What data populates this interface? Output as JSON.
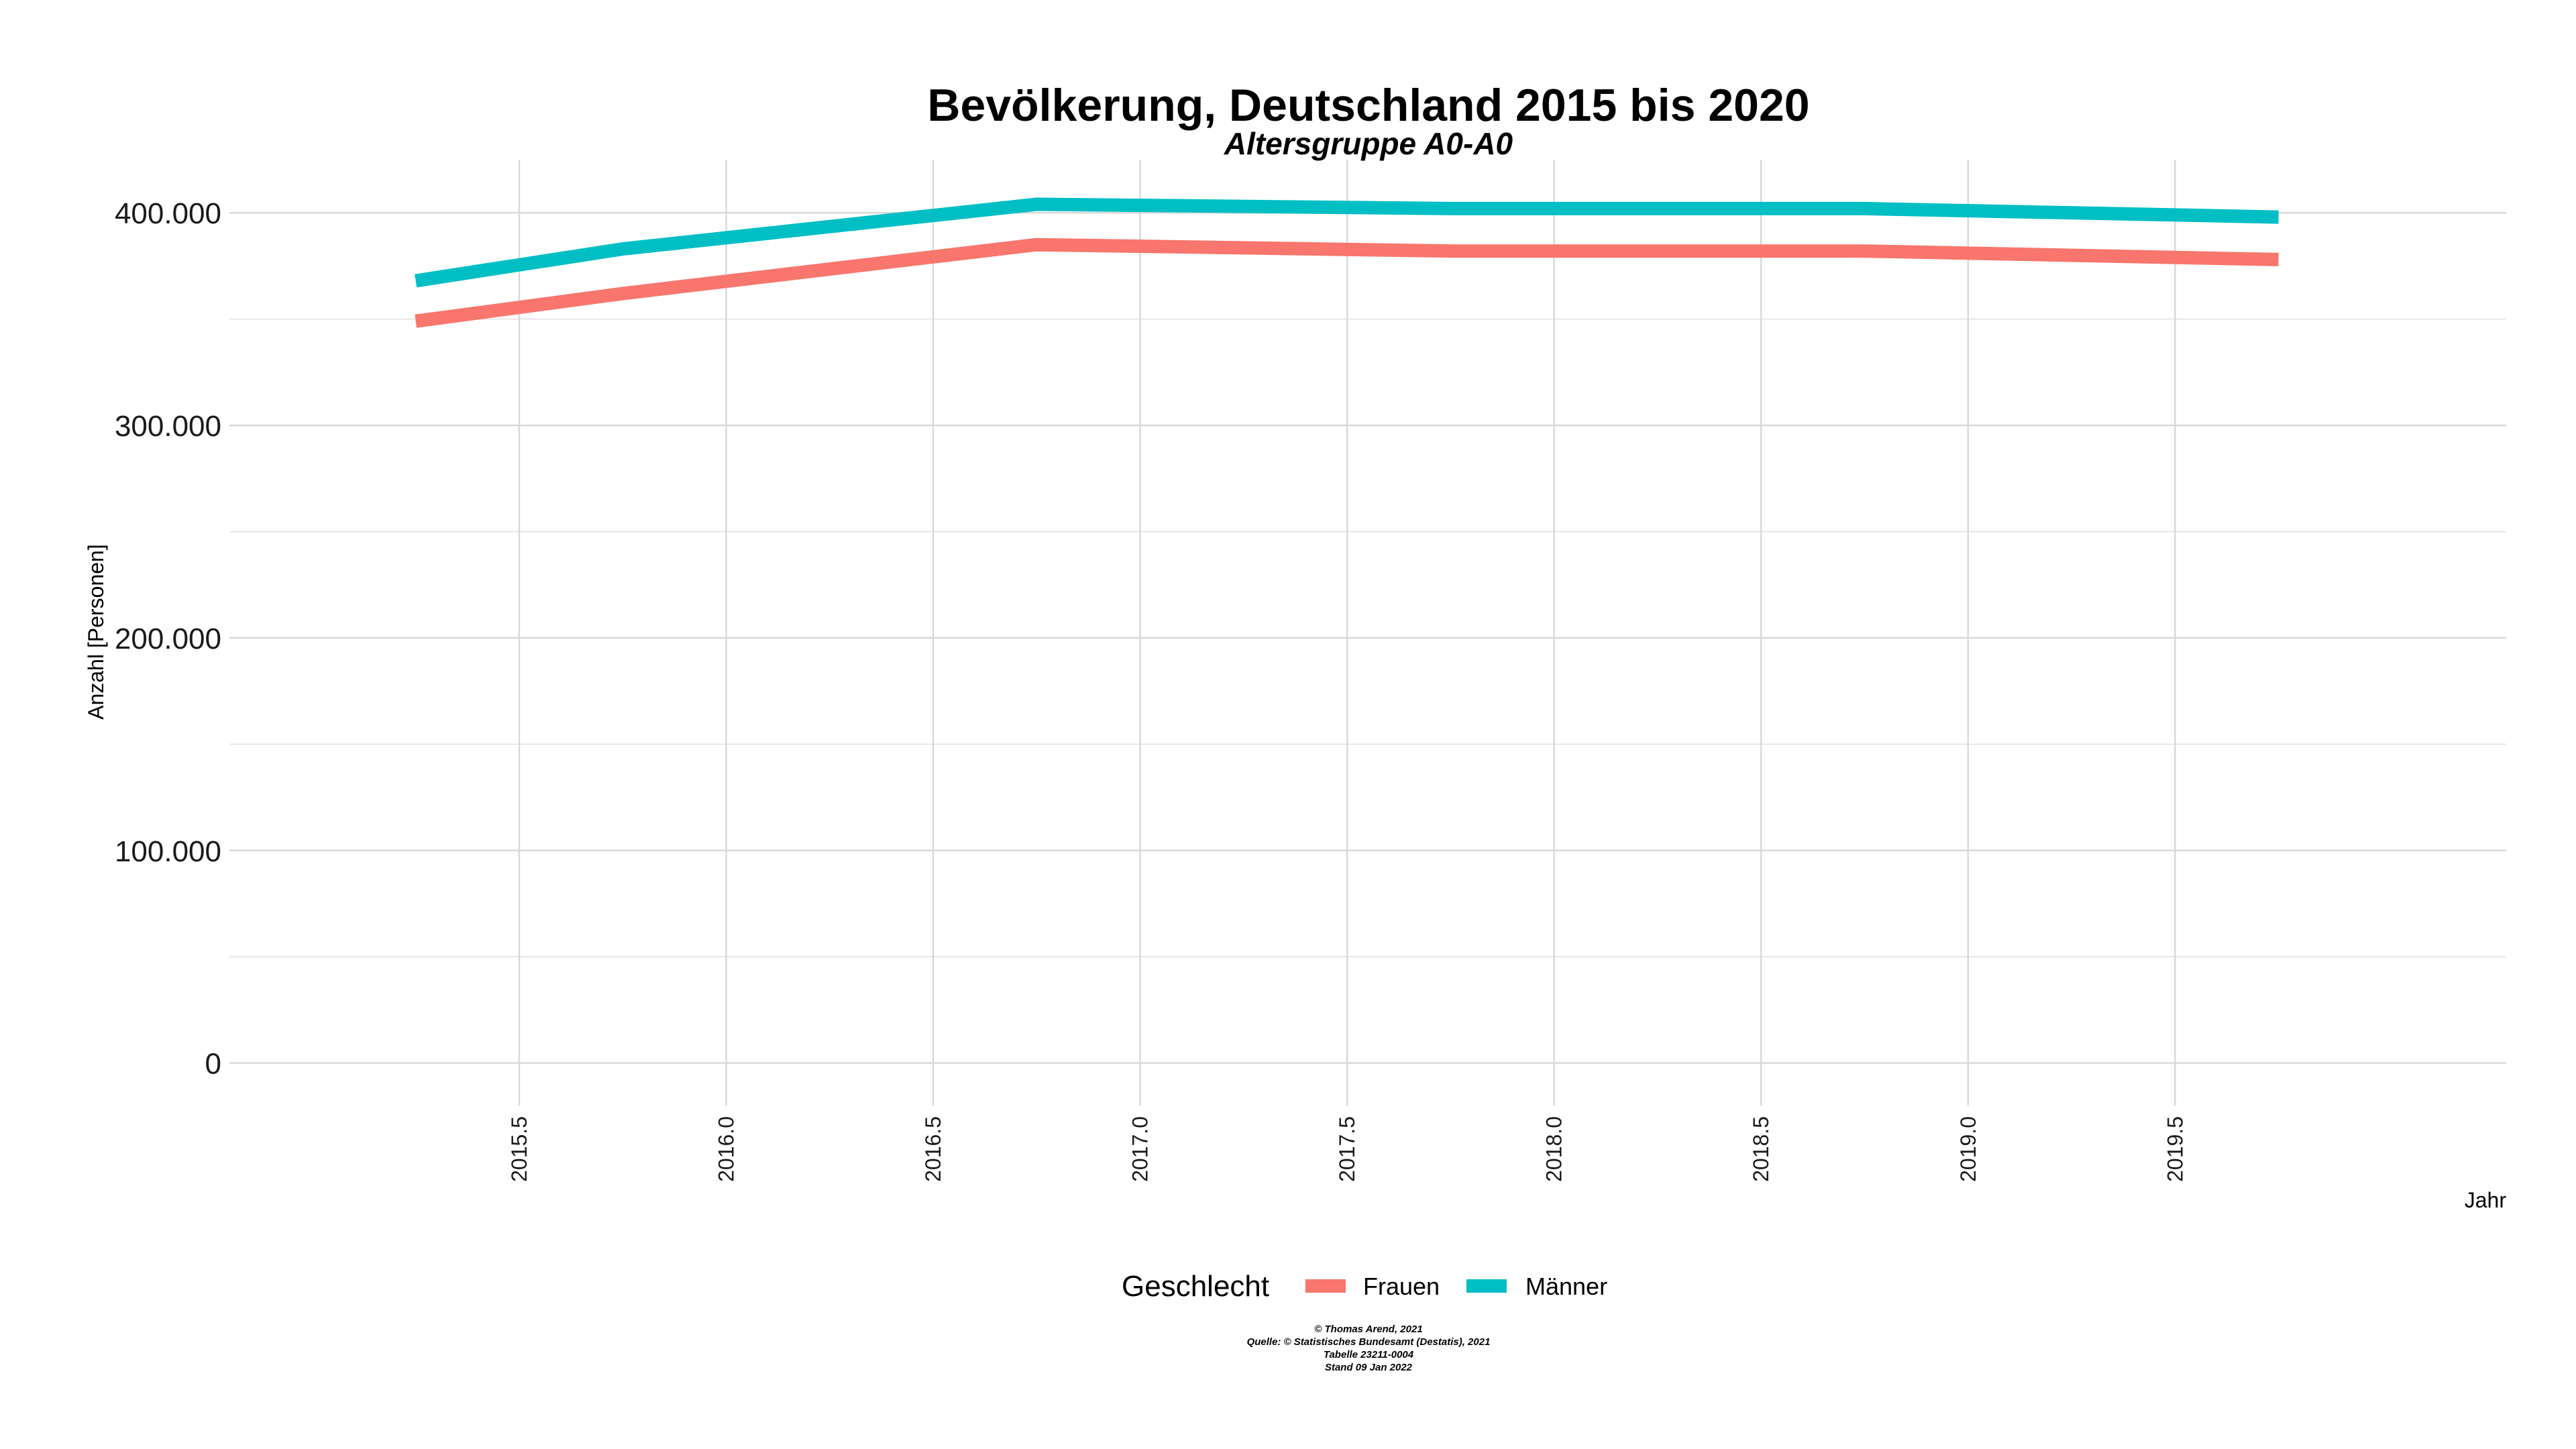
{
  "chart_data": {
    "type": "line",
    "title": "Bevölkerung, Deutschland 2015 bis 2020",
    "subtitle": "Altersgruppe A0-A0",
    "xlabel": "Jahr",
    "ylabel": "Anzahl [Personen]",
    "xlim": [
      2014.8,
      2020.3
    ],
    "ylim": [
      -20000,
      425000
    ],
    "x_ticks": [
      2015.5,
      2016.0,
      2016.5,
      2017.0,
      2017.5,
      2018.0,
      2018.5,
      2019.0,
      2019.5
    ],
    "x_tick_labels": [
      "2015.5",
      "2016.0",
      "2016.5",
      "2017.0",
      "2017.5",
      "2018.0",
      "2018.5",
      "2019.0",
      "2019.5"
    ],
    "y_ticks": [
      0,
      100000,
      200000,
      300000,
      400000
    ],
    "y_tick_labels": [
      "0",
      "100.000",
      "200.000",
      "300.000",
      "400.000"
    ],
    "grid": true,
    "x": [
      2015.25,
      2015.75,
      2016.75,
      2017.75,
      2018.75,
      2019.75
    ],
    "series": [
      {
        "name": "Frauen",
        "color": "#F8766D",
        "values": [
          349000,
          362000,
          385000,
          382000,
          382000,
          378000
        ]
      },
      {
        "name": "Männer",
        "color": "#00BFC4",
        "values": [
          368000,
          383000,
          404000,
          402000,
          402000,
          398000
        ]
      }
    ],
    "legend": {
      "title": "Geschlecht",
      "position": "bottom"
    }
  },
  "caption": {
    "line1": "© Thomas Arend, 2021",
    "line2": "Quelle: © Statistisches Bundesamt (Destatis), 2021",
    "line3": "Tabelle 23211-0004",
    "line4": "Stand 09 Jan 2022"
  }
}
